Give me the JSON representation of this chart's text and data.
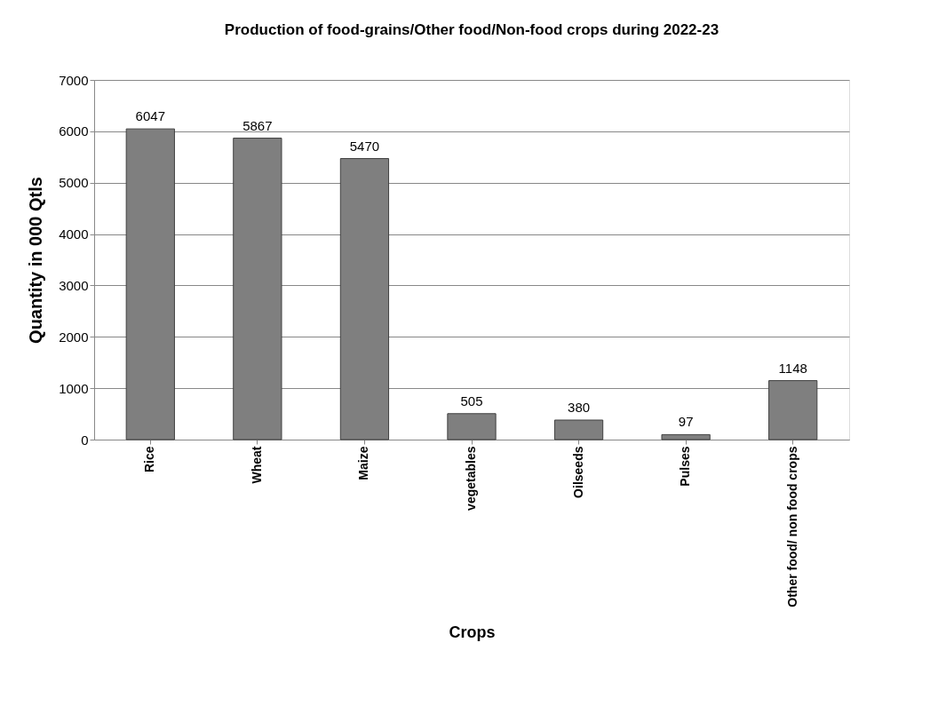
{
  "chart_data": {
    "type": "bar",
    "title": "Production of food-grains/Other food/Non-food crops during 2022-23",
    "xlabel": "Crops",
    "ylabel": "Quantity in  000 Qtls",
    "categories": [
      "Rice",
      "Wheat",
      "Maize",
      "vegetables",
      "Oilseeds",
      "Pulses",
      "Other food/ non food crops"
    ],
    "values": [
      6047,
      5867,
      5470,
      505,
      380,
      97,
      1148
    ],
    "color": "#7f7f7f",
    "ylim": [
      0,
      7000
    ],
    "yticks": [
      0,
      1000,
      2000,
      3000,
      4000,
      5000,
      6000,
      7000
    ],
    "grid": "y",
    "data_labels": true
  }
}
